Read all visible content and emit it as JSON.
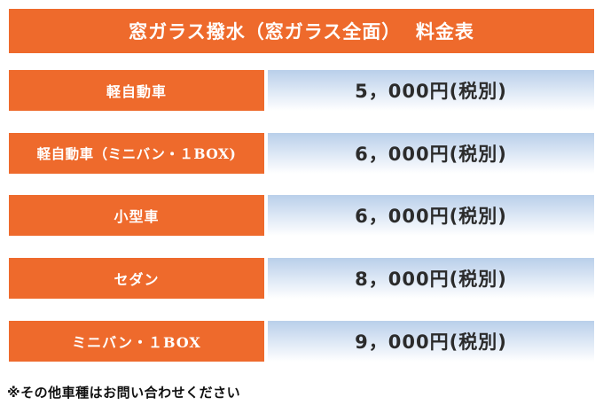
{
  "title": "窓ガラス撥水（窓ガラス全面）  料金表",
  "rows": [
    {
      "label": "軽自動車",
      "price": "5，000円(税別)"
    },
    {
      "label": "軽自動車（ミニバン・１BOX)",
      "price": "6，000円(税別)"
    },
    {
      "label": "小型車",
      "price": "6，000円(税別)"
    },
    {
      "label": "セダン",
      "price": "8，000円(税別)"
    },
    {
      "label": "ミニバン・１BOX",
      "price": "9，000円(税別)"
    }
  ],
  "note": "※その他車種はお問い合わせください",
  "colors": {
    "accent": "#ee6a2c",
    "price_gradient_top": "#b9cfea",
    "price_gradient_bottom": "#ffffff"
  }
}
